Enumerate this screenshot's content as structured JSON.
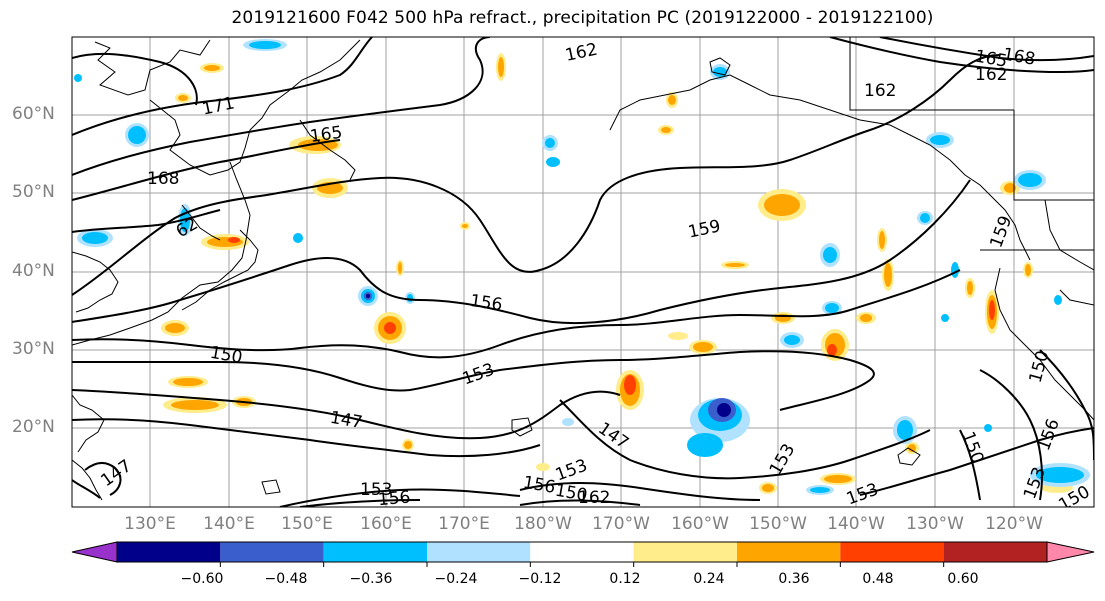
{
  "title": "2019121600 F042 500 hPa refract., precipitation PC (2019122000 - 2019122100)",
  "map": {
    "lat_labels": [
      "60°N",
      "50°N",
      "40°N",
      "30°N",
      "20°N"
    ],
    "lon_labels": [
      "130°E",
      "140°E",
      "150°E",
      "160°E",
      "170°E",
      "180°W",
      "170°W",
      "160°W",
      "150°W",
      "140°W",
      "130°W",
      "120°W"
    ]
  },
  "contour_labels": [
    "171",
    "165",
    "168",
    "62",
    "162",
    "162",
    "162",
    "165",
    "168",
    "159",
    "159",
    "156",
    "153",
    "150",
    "147",
    "147",
    "147",
    "153",
    "153",
    "156",
    "156",
    "150",
    "162",
    "153",
    "153",
    "150",
    "150",
    "153",
    "156",
    "150"
  ],
  "colorbar": {
    "colors": [
      "#9932cc",
      "#00008b",
      "#3a5fcd",
      "#00bfff",
      "#b0e2ff",
      "#ffffff",
      "#ffec8b",
      "#ffa500",
      "#ff4000",
      "#b22222",
      "#ff88aa"
    ],
    "tick_labels": [
      "−0.60",
      "−0.48",
      "−0.36",
      "−0.24",
      "−0.12",
      "0.12",
      "0.24",
      "0.36",
      "0.48",
      "0.60"
    ]
  }
}
